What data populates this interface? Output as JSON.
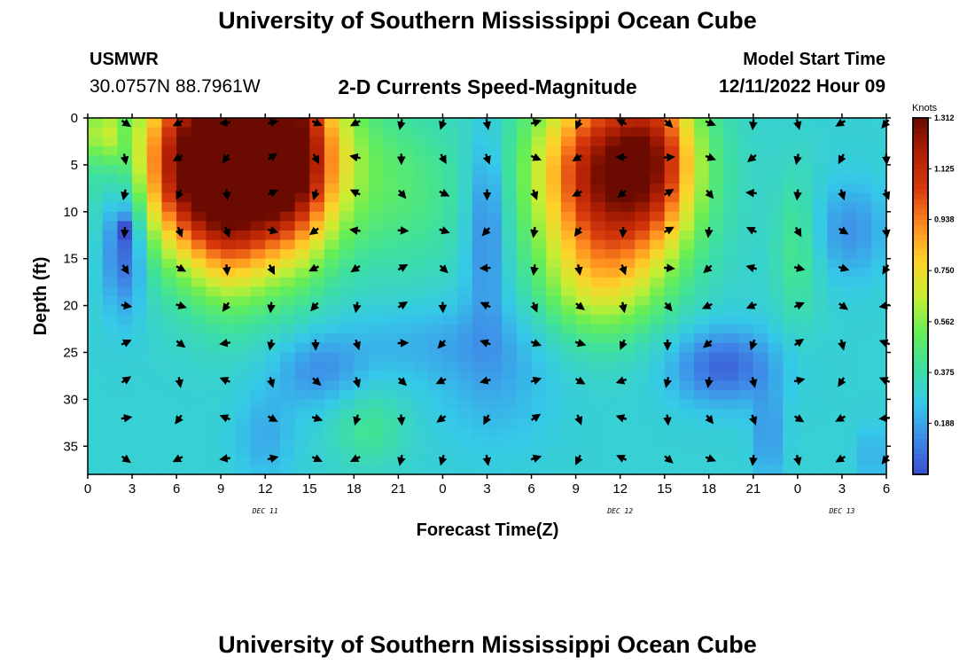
{
  "header": {
    "title": "University of Southern Mississippi Ocean Cube",
    "station": "USMWR",
    "coords": "30.0757N  88.7961W",
    "subtitle": "2-D Currents Speed-Magnitude",
    "model_label": "Model Start Time",
    "model_time": "12/11/2022 Hour 09"
  },
  "footer": {
    "title": "University of Southern Mississippi Ocean Cube"
  },
  "colors": {
    "ramp": [
      "#3a4fcf",
      "#3f8ae8",
      "#35c9e8",
      "#3de0a0",
      "#66ee55",
      "#c8ee33",
      "#ffd22a",
      "#ff8a1f",
      "#d83a0d",
      "#b01f02",
      "#6a0a00"
    ]
  },
  "chart_data": {
    "type": "heatmap",
    "title": "2-D Currents Speed-Magnitude",
    "xlabel": "Forecast Time(Z)",
    "ylabel": "Depth (ft)",
    "x_ticks": [
      {
        "hour": 0,
        "label": "0"
      },
      {
        "hour": 3,
        "label": "3"
      },
      {
        "hour": 6,
        "label": "6"
      },
      {
        "hour": 9,
        "label": "9"
      },
      {
        "hour": 12,
        "label": "12"
      },
      {
        "hour": 15,
        "label": "15"
      },
      {
        "hour": 18,
        "label": "18"
      },
      {
        "hour": 21,
        "label": "21"
      },
      {
        "hour": 24,
        "label": "0"
      },
      {
        "hour": 27,
        "label": "3"
      },
      {
        "hour": 30,
        "label": "6"
      },
      {
        "hour": 33,
        "label": "9"
      },
      {
        "hour": 36,
        "label": "12"
      },
      {
        "hour": 39,
        "label": "15"
      },
      {
        "hour": 42,
        "label": "18"
      },
      {
        "hour": 45,
        "label": "21"
      },
      {
        "hour": 48,
        "label": "0"
      },
      {
        "hour": 51,
        "label": "3"
      },
      {
        "hour": 54,
        "label": "6"
      }
    ],
    "date_labels": [
      {
        "hour": 12,
        "label": "DEC 11"
      },
      {
        "hour": 36,
        "label": "DEC 12"
      },
      {
        "hour": 51,
        "label": "DEC 13"
      }
    ],
    "y_ticks": [
      0,
      5,
      10,
      15,
      20,
      25,
      30,
      35
    ],
    "xlim": [
      0,
      54
    ],
    "ylim": [
      0,
      38
    ],
    "colorbar": {
      "title": "Knots",
      "ticks": [
        "1.312",
        "1.125",
        "0.938",
        "0.750",
        "0.562",
        "0.375",
        "0.188"
      ],
      "min": 0.0,
      "max": 1.312
    },
    "vector_times": [
      2.5,
      6.2,
      9.4,
      12.4,
      15.4,
      18.2,
      21.2,
      24,
      27,
      30.2,
      33.2,
      36.2,
      39.2,
      42,
      45,
      48,
      51,
      54
    ],
    "vector_depths": [
      0.5,
      4.2,
      8,
      12,
      16,
      20,
      24,
      28,
      32,
      36.3
    ],
    "features": [
      {
        "t": 10.5,
        "d": 5,
        "st": 6.5,
        "sd": 9,
        "v": 0.95
      },
      {
        "t": 13.5,
        "d": 2,
        "st": 3,
        "sd": 13,
        "v": 0.55
      },
      {
        "t": 7,
        "d": 4,
        "st": 3,
        "sd": 11,
        "v": 0.45
      },
      {
        "t": 9.7,
        "d": 13,
        "st": 2.5,
        "sd": 8,
        "v": 0.28
      },
      {
        "t": 35.5,
        "d": 6,
        "st": 5,
        "sd": 10,
        "v": 1.0
      },
      {
        "t": 34.5,
        "d": 18,
        "st": 4,
        "sd": 6,
        "v": 0.25
      },
      {
        "t": 38.5,
        "d": 3,
        "st": 2.5,
        "sd": 9,
        "v": 0.3
      },
      {
        "t": 2.5,
        "d": 13,
        "st": 1.4,
        "sd": 7,
        "v": -0.33
      },
      {
        "t": 2.5,
        "d": 12,
        "st": 0.6,
        "sd": 1.2,
        "v": -0.15
      },
      {
        "t": 27,
        "d": 11,
        "st": 1.4,
        "sd": 10,
        "v": -0.22
      },
      {
        "t": 27.5,
        "d": 27,
        "st": 4,
        "sd": 8,
        "v": -0.1
      },
      {
        "t": 15.5,
        "d": 27,
        "st": 3,
        "sd": 4,
        "v": -0.15
      },
      {
        "t": 12,
        "d": 34,
        "st": 2,
        "sd": 5,
        "v": -0.1
      },
      {
        "t": 22,
        "d": 24,
        "st": 6,
        "sd": 4,
        "v": -0.08
      },
      {
        "t": 43,
        "d": 26.5,
        "st": 3.5,
        "sd": 4,
        "v": -0.25
      },
      {
        "t": 46,
        "d": 34,
        "st": 1,
        "sd": 5,
        "v": -0.15
      },
      {
        "t": 51.5,
        "d": 12,
        "st": 2.5,
        "sd": 5,
        "v": -0.15
      },
      {
        "t": 48,
        "d": 14,
        "st": 1.5,
        "sd": 8,
        "v": 0.14
      },
      {
        "t": 19,
        "d": 33,
        "st": 2.5,
        "sd": 4,
        "v": 0.12
      },
      {
        "t": 22,
        "d": 8,
        "st": 4,
        "sd": 9,
        "v": 0.12
      },
      {
        "t": 1,
        "d": 1.5,
        "st": 1,
        "sd": 3,
        "v": 0.3
      },
      {
        "t": 53,
        "d": 36,
        "st": 1,
        "sd": 3,
        "v": -0.1
      }
    ]
  }
}
